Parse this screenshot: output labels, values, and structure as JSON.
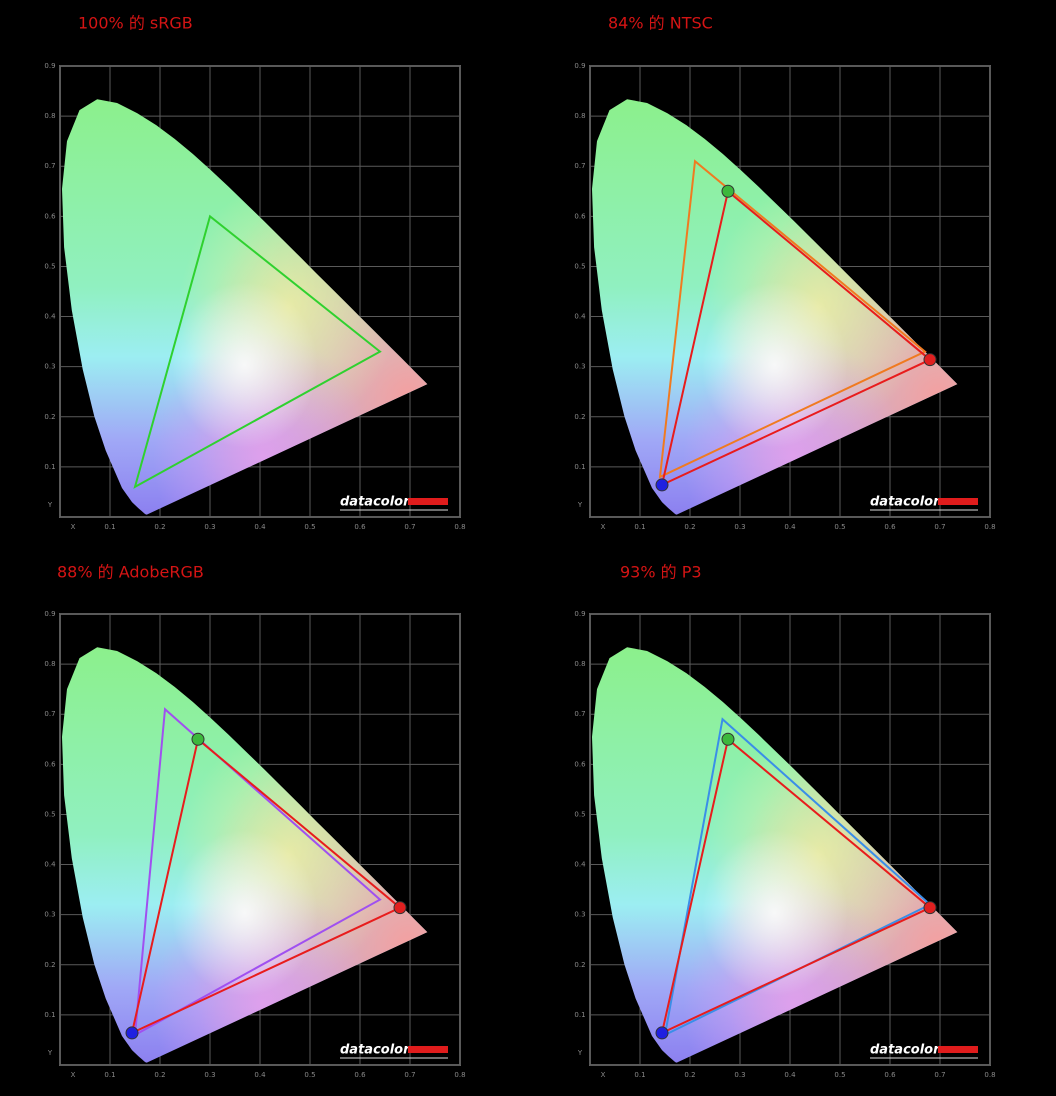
{
  "chart_data": [
    {
      "type": "gamut",
      "title": "100% 的 sRGB",
      "brand": "datacolor",
      "xlim": [
        0,
        0.8
      ],
      "ylim": [
        0,
        0.9
      ],
      "xticks": [
        {
          "value": 0,
          "label": "X"
        },
        0.1,
        0.2,
        0.3,
        0.4,
        0.5,
        0.6,
        0.7,
        0.8
      ],
      "yticks": [
        {
          "value": 0,
          "label": "Y"
        },
        0.1,
        0.2,
        0.3,
        0.4,
        0.5,
        0.6,
        0.7,
        0.8,
        0.9
      ],
      "grid": true,
      "series": [
        {
          "color": "#2fd12f",
          "x": [
            0.64,
            0.3,
            0.15
          ],
          "y": [
            0.33,
            0.6,
            0.06
          ]
        }
      ]
    },
    {
      "type": "gamut",
      "title": "84% 的 NTSC",
      "brand": "datacolor",
      "xlim": [
        0,
        0.8
      ],
      "ylim": [
        0,
        0.9
      ],
      "xticks": [
        {
          "value": 0,
          "label": "X"
        },
        0.1,
        0.2,
        0.3,
        0.4,
        0.5,
        0.6,
        0.7,
        0.8
      ],
      "yticks": [
        {
          "value": 0,
          "label": "Y"
        },
        0.1,
        0.2,
        0.3,
        0.4,
        0.5,
        0.6,
        0.7,
        0.8,
        0.9
      ],
      "grid": true,
      "series": [
        {
          "color": "#f07a20",
          "x": [
            0.67,
            0.21,
            0.14
          ],
          "y": [
            0.33,
            0.71,
            0.08
          ]
        },
        {
          "color": "#e81c1c",
          "x": [
            0.68,
            0.276,
            0.144
          ],
          "y": [
            0.314,
            0.65,
            0.064
          ],
          "marker_colors": [
            "#e02020",
            "#3cb83c",
            "#2020e0"
          ]
        }
      ]
    },
    {
      "type": "gamut",
      "title": "88% 的 AdobeRGB",
      "brand": "datacolor",
      "xlim": [
        0,
        0.8
      ],
      "ylim": [
        0,
        0.9
      ],
      "xticks": [
        {
          "value": 0,
          "label": "X"
        },
        0.1,
        0.2,
        0.3,
        0.4,
        0.5,
        0.6,
        0.7,
        0.8
      ],
      "yticks": [
        {
          "value": 0,
          "label": "Y"
        },
        0.1,
        0.2,
        0.3,
        0.4,
        0.5,
        0.6,
        0.7,
        0.8,
        0.9
      ],
      "grid": true,
      "series": [
        {
          "color": "#a050f0",
          "x": [
            0.64,
            0.21,
            0.15
          ],
          "y": [
            0.33,
            0.71,
            0.06
          ]
        },
        {
          "color": "#e81c1c",
          "x": [
            0.68,
            0.276,
            0.144
          ],
          "y": [
            0.314,
            0.65,
            0.064
          ],
          "marker_colors": [
            "#e02020",
            "#3cb83c",
            "#2020e0"
          ]
        }
      ]
    },
    {
      "type": "gamut",
      "title": "93% 的 P3",
      "brand": "datacolor",
      "xlim": [
        0,
        0.8
      ],
      "ylim": [
        0,
        0.9
      ],
      "xticks": [
        {
          "value": 0,
          "label": "X"
        },
        0.1,
        0.2,
        0.3,
        0.4,
        0.5,
        0.6,
        0.7,
        0.8
      ],
      "yticks": [
        {
          "value": 0,
          "label": "Y"
        },
        0.1,
        0.2,
        0.3,
        0.4,
        0.5,
        0.6,
        0.7,
        0.8,
        0.9
      ],
      "grid": true,
      "series": [
        {
          "color": "#3a8ee8",
          "x": [
            0.68,
            0.265,
            0.15
          ],
          "y": [
            0.32,
            0.69,
            0.06
          ]
        },
        {
          "color": "#e81c1c",
          "x": [
            0.68,
            0.276,
            0.144
          ],
          "y": [
            0.314,
            0.65,
            0.064
          ],
          "marker_colors": [
            "#e02020",
            "#3cb83c",
            "#2020e0"
          ]
        }
      ]
    }
  ]
}
